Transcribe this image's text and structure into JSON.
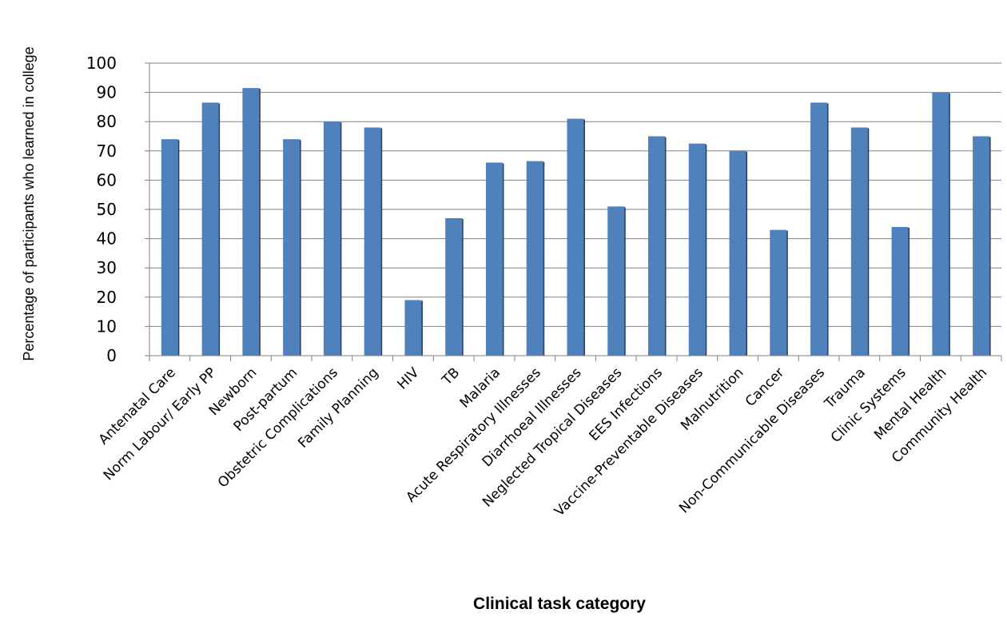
{
  "chart_data": {
    "type": "bar",
    "title": "",
    "xlabel": "Clinical task category",
    "ylabel": "Percentage of participants who learned in college",
    "ylim": [
      0,
      100
    ],
    "yticks": [
      0,
      10,
      20,
      30,
      40,
      50,
      60,
      70,
      80,
      90,
      100
    ],
    "grid": true,
    "legend": "none",
    "bar_color": "#4f81bd",
    "categories": [
      "Antenatal Care",
      "Norm Labour/ Early PP",
      "Newborn",
      "Post-partum",
      "Obstetric Complications",
      "Family Planning",
      "HIV",
      "TB",
      "Malaria",
      "Acute Respiratory Illnesses",
      "Diarrhoeal Illnesses",
      "Neglected Tropical Diseases",
      "EES Infections",
      "Vaccine-Preventable Diseases",
      "Malnutrition",
      "Cancer",
      "Non-Communicable Diseases",
      "Trauma",
      "Clinic Systems",
      "Mental Health",
      "Community Health"
    ],
    "values": [
      74,
      86.5,
      91.5,
      74,
      80,
      78,
      19,
      47,
      66,
      66.5,
      81,
      51,
      75,
      72.5,
      70,
      43,
      86.5,
      78,
      44,
      90,
      75
    ]
  }
}
